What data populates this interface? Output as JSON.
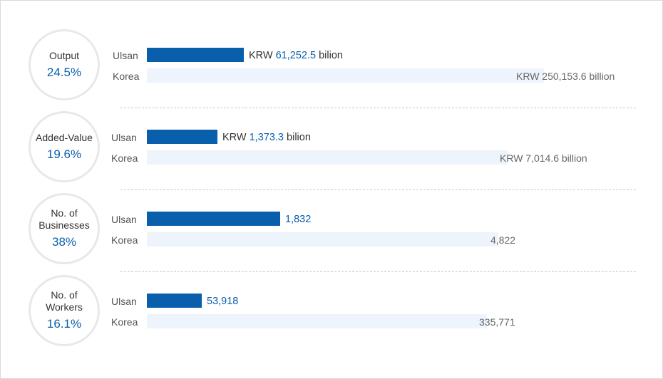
{
  "chart_data": {
    "type": "bar",
    "metrics": [
      {
        "label": "Output",
        "share": "24.5%",
        "ulsan": {
          "name": "Ulsan",
          "value": 61252.5,
          "prefix": "KRW ",
          "display": "61,252.5",
          "suffix": " bilion"
        },
        "korea": {
          "name": "Korea",
          "value": 250153.6,
          "display": "KRW 250,153.6 billion"
        }
      },
      {
        "label": "Added-Value",
        "share": "19.6%",
        "ulsan": {
          "name": "Ulsan",
          "value": 1373.3,
          "prefix": "KRW ",
          "display": "1,373.3",
          "suffix": " bilion"
        },
        "korea": {
          "name": "Korea",
          "value": 7014.6,
          "display": "KRW 7,014.6 billion"
        }
      },
      {
        "label": "No. of\nBusinesses",
        "share": "38%",
        "ulsan": {
          "name": "Ulsan",
          "value": 1832,
          "prefix": "",
          "display": "1,832",
          "suffix": ""
        },
        "korea": {
          "name": "Korea",
          "value": 4822,
          "display": "4,822"
        }
      },
      {
        "label": "No. of\nWorkers",
        "share": "16.1%",
        "ulsan": {
          "name": "Ulsan",
          "value": 53918,
          "prefix": "",
          "display": "53,918",
          "suffix": ""
        },
        "korea": {
          "name": "Korea",
          "value": 335771,
          "display": "335,771"
        }
      }
    ],
    "colors": {
      "ulsan_bar": "#0a5fad",
      "korea_bar": "#eef4fb",
      "accent_text": "#0a5fad"
    },
    "grid": false,
    "legend": "none"
  }
}
